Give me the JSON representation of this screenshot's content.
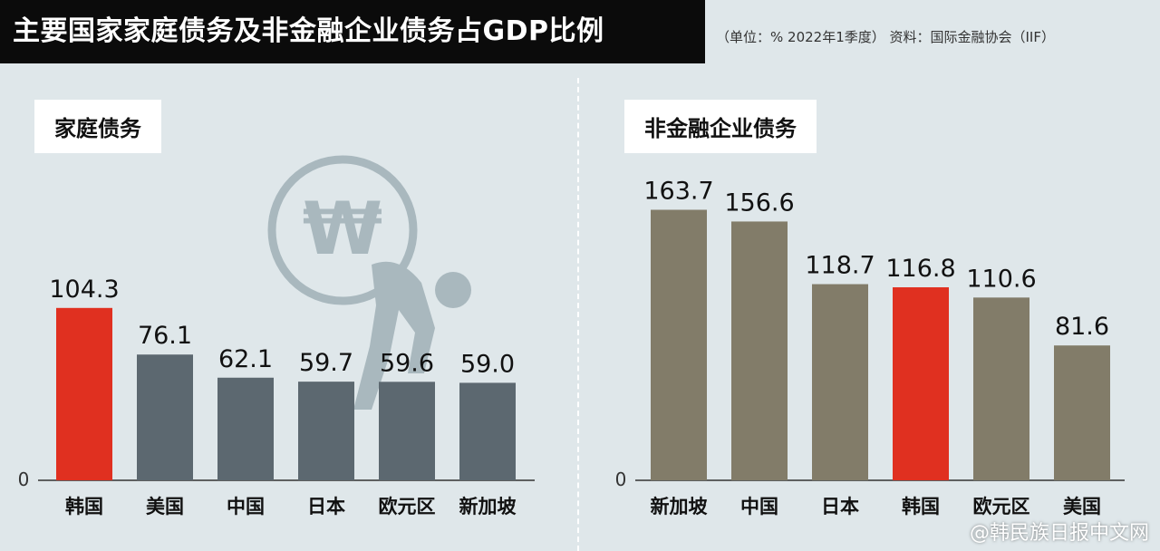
{
  "title": "主要国家家庭债务及非金融企业债务占GDP比例",
  "source_note": "（单位：% 2022年1季度） 资料：国际金融协会（IIF）",
  "watermark": "@韩民族日报中文网",
  "icon_currency_symbol": "₩",
  "colors": {
    "highlight": "#e03020",
    "household_bar": "#5c6870",
    "corporate_bar": "#827c69",
    "background": "#dfe7ea"
  },
  "chart_data": [
    {
      "type": "bar",
      "title": "家庭债务",
      "categories": [
        "韩国",
        "美国",
        "中国",
        "日本",
        "欧元区",
        "新加坡"
      ],
      "values": [
        104.3,
        76.1,
        62.1,
        59.7,
        59.6,
        59.0
      ],
      "value_labels": [
        "104.3",
        "76.1",
        "62.1",
        "59.7",
        "59.6",
        "59.0"
      ],
      "highlight": "韩国",
      "zero_label": "0",
      "ylim": [
        0,
        170
      ],
      "grid": false
    },
    {
      "type": "bar",
      "title": "非金融企业债务",
      "categories": [
        "新加坡",
        "中国",
        "日本",
        "韩国",
        "欧元区",
        "美国"
      ],
      "values": [
        163.7,
        156.6,
        118.7,
        116.8,
        110.6,
        81.6
      ],
      "value_labels": [
        "163.7",
        "156.6",
        "118.7",
        "116.8",
        "110.6",
        "81.6"
      ],
      "highlight": "韩国",
      "zero_label": "0",
      "ylim": [
        0,
        170
      ],
      "grid": false
    }
  ]
}
